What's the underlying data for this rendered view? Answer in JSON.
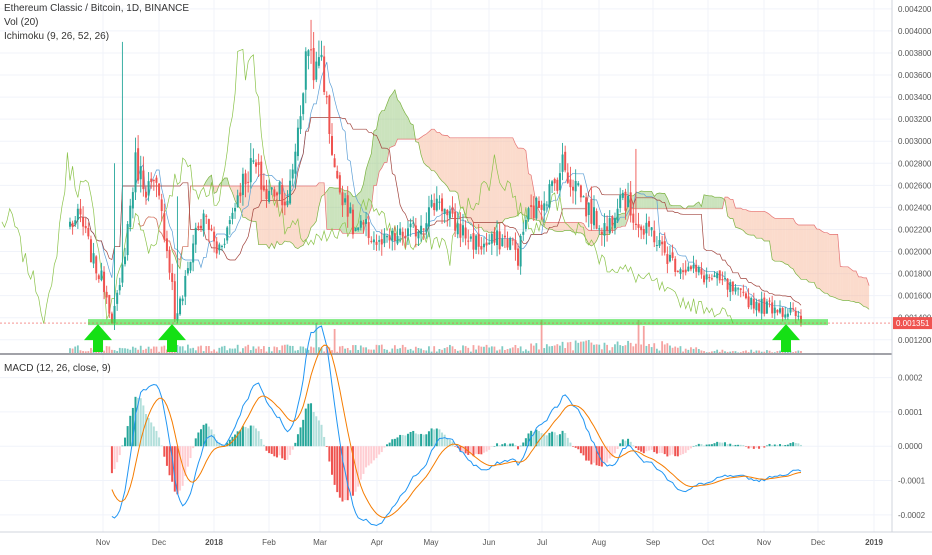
{
  "header": {
    "symbol_line": "Ethereum Classic / Bitcoin, 1D, BINANCE",
    "volume_line": "Vol (20)",
    "ichimoku_line": "Ichimoku (9, 26, 52, 26)",
    "macd_line": "MACD (12, 26, close, 9)"
  },
  "colors": {
    "up": "#26a69a",
    "down": "#ef5350",
    "up_vol": "#7fcbc3",
    "down_vol": "#f5a3a1",
    "cloud_bull": "#8cc26c",
    "cloud_bear": "#f7b08e",
    "support": "#3adf3a",
    "arrow": "#15e015",
    "macd_line": "#2196f3",
    "signal_line": "#f57c00",
    "price_tag": "#ef5350"
  },
  "chart_data": [
    {
      "type": "candlestick",
      "symbol": "Ethereum Classic / Bitcoin",
      "interval": "1D",
      "exchange": "BINANCE",
      "y_ticks": [
        0.0012,
        0.0014,
        0.0016,
        0.0018,
        0.002,
        0.0022,
        0.0024,
        0.0026,
        0.0028,
        0.003,
        0.0032,
        0.0034,
        0.0036,
        0.0038,
        0.004,
        0.0042
      ],
      "y_tick_labels": [
        "0.001200",
        "0.001400",
        "0.001600",
        "0.001800",
        "0.002000",
        "0.002200",
        "0.002400",
        "0.002600",
        "0.002800",
        "0.003000",
        "0.003200",
        "0.003400",
        "0.003600",
        "0.003800",
        "0.004000",
        "0.004200"
      ],
      "ylim": [
        0.00108,
        0.00428
      ],
      "last_price": 0.001351,
      "last_price_label": "0.001351",
      "support_level": 0.00136,
      "x_labels": [
        "Nov",
        "Dec",
        "2018",
        "Feb",
        "Mar",
        "Apr",
        "May",
        "Jun",
        "Jul",
        "Aug",
        "Sep",
        "Oct",
        "Nov",
        "Dec",
        "2019"
      ],
      "anchors": [
        [
          0,
          0.00225
        ],
        [
          4,
          0.0023
        ],
        [
          9,
          0.0019
        ],
        [
          13,
          0.0017
        ],
        [
          16,
          0.0014
        ],
        [
          19,
          0.00165
        ],
        [
          25,
          0.0028
        ],
        [
          29,
          0.0026
        ],
        [
          33,
          0.00255
        ],
        [
          36,
          0.0022
        ],
        [
          39,
          0.0017
        ],
        [
          40,
          0.0014
        ],
        [
          43,
          0.0016
        ],
        [
          48,
          0.0022
        ],
        [
          52,
          0.0023
        ],
        [
          56,
          0.002
        ],
        [
          60,
          0.0022
        ],
        [
          65,
          0.0026
        ],
        [
          70,
          0.0028
        ],
        [
          75,
          0.0025
        ],
        [
          80,
          0.0026
        ],
        [
          83,
          0.0024
        ],
        [
          88,
          0.0033
        ],
        [
          91,
          0.0039
        ],
        [
          94,
          0.0036
        ],
        [
          96,
          0.0038
        ],
        [
          98,
          0.0033
        ],
        [
          102,
          0.0026
        ],
        [
          105,
          0.0025
        ],
        [
          108,
          0.0022
        ],
        [
          113,
          0.0022
        ],
        [
          118,
          0.00205
        ],
        [
          122,
          0.0021
        ],
        [
          128,
          0.00215
        ],
        [
          132,
          0.0022
        ],
        [
          138,
          0.0024
        ],
        [
          141,
          0.0025
        ],
        [
          144,
          0.0023
        ],
        [
          149,
          0.0022
        ],
        [
          153,
          0.0021
        ],
        [
          158,
          0.00205
        ],
        [
          163,
          0.0021
        ],
        [
          168,
          0.0021
        ],
        [
          171,
          0.00195
        ],
        [
          174,
          0.0023
        ],
        [
          178,
          0.0024
        ],
        [
          181,
          0.0025
        ],
        [
          185,
          0.0026
        ],
        [
          188,
          0.0028
        ],
        [
          191,
          0.00265
        ],
        [
          194,
          0.0026
        ],
        [
          197,
          0.0024
        ],
        [
          200,
          0.0023
        ],
        [
          205,
          0.0022
        ],
        [
          208,
          0.0024
        ],
        [
          210,
          0.0026
        ],
        [
          213,
          0.0024
        ],
        [
          216,
          0.0023
        ],
        [
          219,
          0.00215
        ],
        [
          222,
          0.0022
        ],
        [
          225,
          0.00205
        ],
        [
          230,
          0.0019
        ],
        [
          235,
          0.00185
        ],
        [
          240,
          0.0018
        ],
        [
          245,
          0.00175
        ],
        [
          250,
          0.0017
        ],
        [
          255,
          0.0016
        ],
        [
          260,
          0.00155
        ],
        [
          265,
          0.0015
        ],
        [
          270,
          0.0015
        ],
        [
          273,
          0.00145
        ],
        [
          275,
          0.0015
        ],
        [
          277,
          0.00138
        ],
        [
          279,
          0.001351
        ]
      ],
      "wick_spikes": [
        [
          17,
          0.0028
        ],
        [
          20,
          0.0039
        ],
        [
          41,
          0.0025
        ],
        [
          92,
          0.0041
        ],
        [
          216,
          0.00293
        ]
      ],
      "volume_spikes": [
        [
          94,
          0.5
        ],
        [
          101,
          0.4
        ],
        [
          180,
          0.55
        ],
        [
          217,
          0.55
        ],
        [
          219,
          0.45
        ]
      ]
    },
    {
      "type": "histogram+line",
      "title": "MACD (12, 26, close, 9)",
      "y_ticks": [
        0.0002,
        0.0001,
        0,
        -0.0001,
        -0.0002
      ],
      "y_tick_labels": [
        "0.0002",
        "0.0001",
        "0.0000",
        "-0.0001",
        "-0.0002"
      ],
      "ylim": [
        -0.00025,
        0.00026
      ]
    }
  ]
}
